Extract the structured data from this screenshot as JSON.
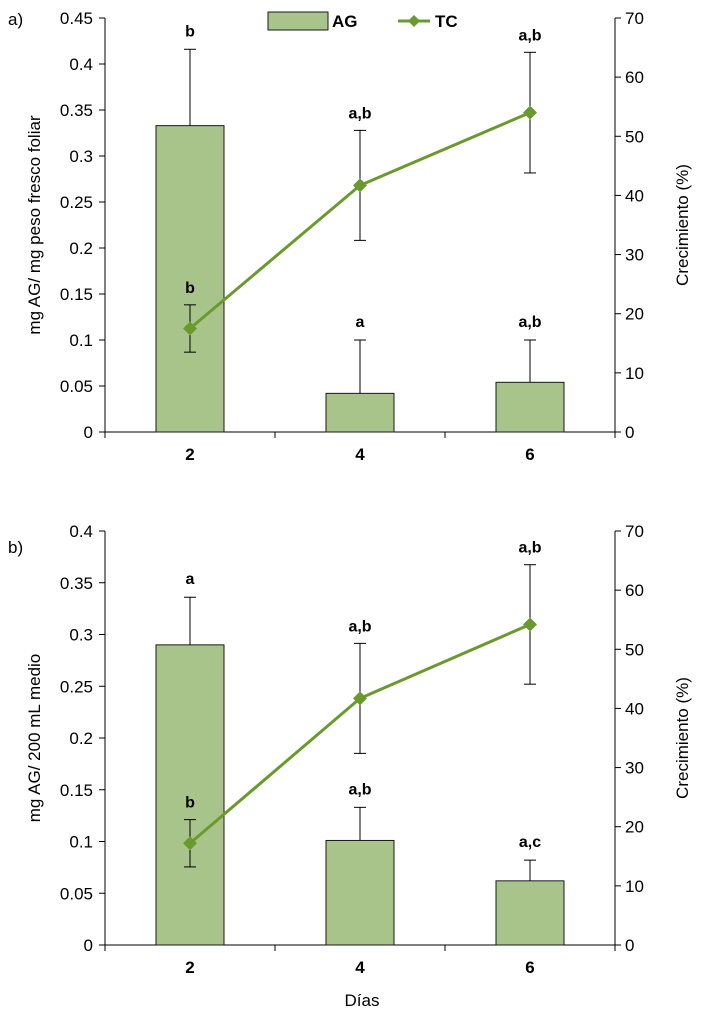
{
  "colors": {
    "bar_fill": "#a9c48a",
    "bar_stroke": "#1a1a1a",
    "line": "#6a9a2e",
    "axis": "#000000"
  },
  "legend": {
    "bar_label": "AG",
    "line_label": "TC"
  },
  "x_axis_title": "Días",
  "chart_data": [
    {
      "panel_label": "a)",
      "type": "bar",
      "categories": [
        "2",
        "4",
        "6"
      ],
      "ylabel": "mg AG/ mg peso fresco foliar",
      "y2label": "Crecimiento (%)",
      "ylim": [
        0,
        0.45
      ],
      "yticks": [
        "0",
        "0.05",
        "0.1",
        "0.15",
        "0.2",
        "0.25",
        "0.3",
        "0.35",
        "0.4",
        "0.45"
      ],
      "y2lim": [
        0,
        70
      ],
      "y2ticks": [
        "0",
        "10",
        "20",
        "30",
        "40",
        "50",
        "60",
        "70"
      ],
      "series": [
        {
          "name": "AG",
          "kind": "bar",
          "values": [
            0.333,
            0.042,
            0.054
          ],
          "err": [
            0.083,
            0.058,
            0.046
          ],
          "letters": [
            "b",
            "a",
            "a,b"
          ]
        },
        {
          "name": "TC",
          "kind": "line",
          "axis": "right",
          "values": [
            17.5,
            41.7,
            54.0
          ],
          "err": [
            4.0,
            9.3,
            10.2
          ],
          "letters": [
            "b",
            "a,b",
            "a,b"
          ]
        }
      ]
    },
    {
      "panel_label": "b)",
      "type": "bar",
      "categories": [
        "2",
        "4",
        "6"
      ],
      "ylabel": "mg AG/ 200 mL medio",
      "y2label": "Crecimiento (%)",
      "ylim": [
        0,
        0.4
      ],
      "yticks": [
        "0",
        "0.05",
        "0.1",
        "0.15",
        "0.2",
        "0.25",
        "0.3",
        "0.35",
        "0.4"
      ],
      "y2lim": [
        0,
        70
      ],
      "y2ticks": [
        "0",
        "10",
        "20",
        "30",
        "40",
        "50",
        "60",
        "70"
      ],
      "series": [
        {
          "name": "AG",
          "kind": "bar",
          "values": [
            0.29,
            0.101,
            0.062
          ],
          "err": [
            0.046,
            0.032,
            0.02
          ],
          "letters": [
            "a",
            "a,b",
            "a,c"
          ]
        },
        {
          "name": "TC",
          "kind": "line",
          "axis": "right",
          "values": [
            17.2,
            41.7,
            54.2
          ],
          "err": [
            4.0,
            9.3,
            10.1
          ],
          "letters": [
            "b",
            "a,b",
            "a,b"
          ]
        }
      ]
    }
  ]
}
